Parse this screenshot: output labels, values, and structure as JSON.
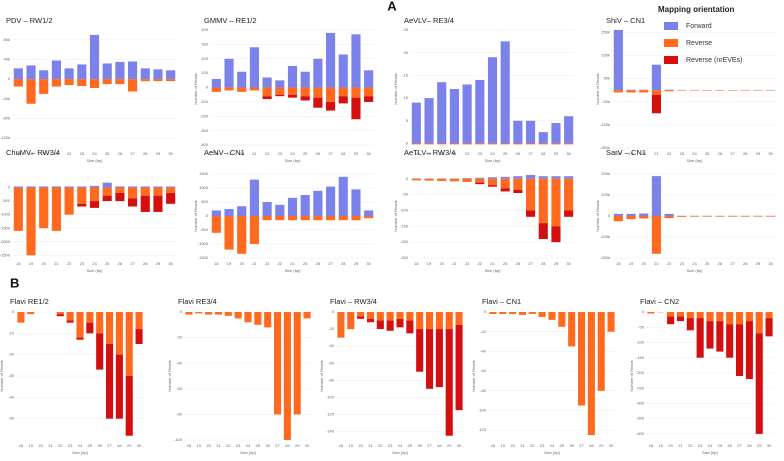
{
  "panel_labels": [
    "A",
    "B"
  ],
  "legend_title": "Mapping orientation",
  "chart_data": [
    {
      "type": "bar",
      "title": "PDV – RW1/2",
      "xlabel": "Size (bp)",
      "ylabel": "Number of Reads",
      "grid": true,
      "categories": [
        "18",
        "19",
        "20",
        "21",
        "22",
        "23",
        "24",
        "25",
        "26",
        "27",
        "28",
        "29",
        "30"
      ],
      "series": [
        {
          "name": "Forward",
          "color": "#7b83eb",
          "values": [
            22000,
            28000,
            18000,
            38000,
            22000,
            30000,
            90000,
            32000,
            35000,
            36000,
            22000,
            20000,
            18000
          ]
        },
        {
          "name": "Reverse",
          "color": "#ff6a1f",
          "values": [
            -15000,
            -50000,
            -30000,
            -15000,
            -12000,
            -14000,
            -18000,
            -10000,
            -10000,
            -25000,
            -4000,
            -4000,
            -4000
          ]
        },
        {
          "name": "Reverse (nrEVEs)",
          "color": "#d3100f",
          "values": [
            0,
            0,
            0,
            0,
            0,
            0,
            0,
            0,
            0,
            0,
            0,
            0,
            0
          ]
        }
      ],
      "ylim": [
        -140000,
        100000
      ],
      "yticks": [
        {
          "value": 80000,
          "label": "80k"
        },
        {
          "value": 40000,
          "label": "40k"
        },
        0,
        {
          "value": -40000,
          "label": "-40k"
        },
        {
          "value": -80000,
          "label": "-80k"
        },
        {
          "value": -120000,
          "label": "-120k"
        }
      ]
    },
    {
      "type": "bar",
      "title": "GMMV – RE1/2",
      "xlabel": "Size (bp)",
      "ylabel": "Number of Reads",
      "grid": true,
      "categories": [
        "18",
        "19",
        "20",
        "21",
        "22",
        "23",
        "24",
        "25",
        "26",
        "27",
        "28",
        "29",
        "30"
      ],
      "series": [
        {
          "name": "Forward",
          "color": "#7b83eb",
          "values": [
            60,
            200,
            110,
            280,
            70,
            50,
            150,
            110,
            200,
            380,
            230,
            370,
            120
          ]
        },
        {
          "name": "Reverse",
          "color": "#ff6a1f",
          "values": [
            -30,
            -20,
            -30,
            -20,
            -60,
            -50,
            -50,
            -60,
            -70,
            -100,
            -60,
            -70,
            -60
          ]
        },
        {
          "name": "Reverse (nrEVEs)",
          "color": "#d3100f",
          "values": [
            0,
            0,
            0,
            0,
            -20,
            -10,
            -20,
            -30,
            -70,
            -60,
            -50,
            -150,
            -40
          ]
        }
      ],
      "ylim": [
        -420,
        400
      ],
      "yticks": [
        400,
        300,
        200,
        100,
        0,
        -100,
        -200,
        -300,
        -400
      ]
    },
    {
      "type": "bar",
      "title": "AeVLV– RE3/4",
      "xlabel": "Size (bp)",
      "ylabel": "Number of Reads",
      "grid": true,
      "categories": [
        "18",
        "19",
        "20",
        "21",
        "22",
        "23",
        "24",
        "25",
        "26",
        "27",
        "28",
        "29",
        "30"
      ],
      "series": [
        {
          "name": "Forward",
          "color": "#7b83eb",
          "values": [
            9,
            10,
            13.5,
            12,
            13,
            14,
            19,
            22.5,
            5,
            5,
            2.5,
            4.5,
            6
          ]
        },
        {
          "name": "Reverse",
          "color": "#ff6a1f",
          "values": [
            -0.2,
            -0.2,
            -0.2,
            -0.2,
            -0.2,
            -0.2,
            -0.2,
            -0.2,
            -0.2,
            -0.2,
            -0.2,
            -0.2,
            -0.2
          ]
        },
        {
          "name": "Reverse (nrEVEs)",
          "color": "#d3100f",
          "values": [
            0,
            0,
            0,
            0,
            0,
            0,
            0,
            0,
            0,
            0,
            0,
            0,
            0
          ]
        }
      ],
      "ylim": [
        -1,
        25
      ],
      "yticks": [
        25,
        20,
        15,
        10,
        5,
        0
      ]
    },
    {
      "type": "bar",
      "title": "ShiV – CN1",
      "xlabel": "Size (bp)",
      "ylabel": "Number of Reads",
      "grid": true,
      "categories": [
        "18",
        "19",
        "20",
        "21",
        "22",
        "23",
        "24",
        "25",
        "26",
        "27",
        "28",
        "29",
        "30"
      ],
      "series": [
        {
          "name": "Forward",
          "color": "#7b83eb",
          "values": [
            260000,
            2000,
            2000,
            110000,
            2000,
            1000,
            1000,
            1000,
            1000,
            1000,
            1000,
            1000,
            1000
          ]
        },
        {
          "name": "Reverse",
          "color": "#ff6a1f",
          "values": [
            -10000,
            -10000,
            -10000,
            -20000,
            -5000,
            -2000,
            -2000,
            -2000,
            -2000,
            -2000,
            -2000,
            -2000,
            -2000
          ]
        },
        {
          "name": "Reverse (nrEVEs)",
          "color": "#d3100f",
          "values": [
            0,
            0,
            0,
            -80000,
            0,
            0,
            0,
            0,
            0,
            0,
            0,
            0,
            0
          ]
        }
      ],
      "ylim": [
        -250000,
        260000
      ],
      "yticks": [
        {
          "value": 250000,
          "label": "250k"
        },
        {
          "value": 150000,
          "label": "150k"
        },
        {
          "value": 50000,
          "label": "50k"
        },
        {
          "value": -50000,
          "label": "-50k"
        },
        {
          "value": -150000,
          "label": "-150k"
        },
        {
          "value": -250000,
          "label": "-250k"
        }
      ]
    },
    {
      "type": "bar",
      "title": "ChuMV– RW3/4",
      "xlabel": "Size (bp)",
      "ylabel": "Number of Reads",
      "grid": true,
      "categories": [
        "18",
        "19",
        "20",
        "21",
        "22",
        "23",
        "24",
        "25",
        "26",
        "27",
        "28",
        "29",
        "30"
      ],
      "series": [
        {
          "name": "Forward",
          "color": "#7b83eb",
          "values": [
            40,
            40,
            40,
            40,
            40,
            40,
            60,
            180,
            40,
            40,
            40,
            40,
            40
          ]
        },
        {
          "name": "Reverse",
          "color": "#ff6a1f",
          "values": [
            -1600,
            -2500,
            -1500,
            -1600,
            -1000,
            -600,
            -500,
            -300,
            -200,
            -400,
            -300,
            -300,
            -200
          ]
        },
        {
          "name": "Reverse (nrEVEs)",
          "color": "#d3100f",
          "values": [
            0,
            0,
            0,
            0,
            0,
            -100,
            -250,
            -200,
            -300,
            -300,
            -600,
            -600,
            -400
          ]
        }
      ],
      "ylim": [
        -2600,
        500
      ],
      "yticks": [
        0,
        -500,
        -1000,
        -1500,
        -2000,
        -2500
      ]
    },
    {
      "type": "bar",
      "title": "AeNV– CN1",
      "xlabel": "Size (bp)",
      "ylabel": "Number of Reads",
      "grid": true,
      "categories": [
        "18",
        "19",
        "20",
        "21",
        "22",
        "23",
        "24",
        "25",
        "26",
        "27",
        "28",
        "29",
        "30"
      ],
      "series": [
        {
          "name": "Forward",
          "color": "#7b83eb",
          "values": [
            200,
            250,
            350,
            1300,
            500,
            400,
            650,
            750,
            900,
            1050,
            1400,
            950,
            200
          ]
        },
        {
          "name": "Reverse",
          "color": "#ff6a1f",
          "values": [
            -600,
            -1200,
            -1350,
            -1000,
            -150,
            -150,
            -150,
            -150,
            -150,
            -150,
            -150,
            -150,
            -80
          ]
        },
        {
          "name": "Reverse (nrEVEs)",
          "color": "#d3100f",
          "values": [
            0,
            0,
            0,
            0,
            0,
            0,
            0,
            0,
            0,
            0,
            0,
            0,
            0
          ]
        }
      ],
      "ylim": [
        -1500,
        1500
      ],
      "yticks": [
        1500,
        1000,
        500,
        0,
        -500,
        -1000,
        -1500
      ]
    },
    {
      "type": "bar",
      "title": "AeTLV– RW3/4",
      "xlabel": "Size (bp)",
      "ylabel": "Number of Reads",
      "grid": true,
      "categories": [
        "18",
        "19",
        "20",
        "21",
        "22",
        "23",
        "24",
        "25",
        "26",
        "27",
        "28",
        "29",
        "30"
      ],
      "series": [
        {
          "name": "Forward",
          "color": "#7b83eb",
          "values": [
            1,
            1,
            1,
            1,
            2,
            3,
            5,
            6,
            8,
            12,
            8,
            8,
            8
          ]
        },
        {
          "name": "Reverse",
          "color": "#ff6a1f",
          "values": [
            -5,
            -6,
            -7,
            -8,
            -10,
            -12,
            -20,
            -30,
            -35,
            -100,
            -140,
            -150,
            -100
          ]
        },
        {
          "name": "Reverse (nrEVEs)",
          "color": "#d3100f",
          "values": [
            0,
            0,
            0,
            0,
            0,
            -5,
            -5,
            -10,
            -10,
            -20,
            -50,
            -50,
            -20
          ]
        }
      ],
      "ylim": [
        -250,
        15
      ],
      "yticks": [
        0,
        -50,
        -100,
        -150,
        -200,
        -250
      ]
    },
    {
      "type": "bar",
      "title": "SarV – CN1",
      "xlabel": "Size (bp)",
      "ylabel": "Number of Reads",
      "grid": true,
      "categories": [
        "18",
        "19",
        "20",
        "21",
        "22",
        "23",
        "24",
        "25",
        "26",
        "27",
        "28",
        "29",
        "30"
      ],
      "series": [
        {
          "name": "Forward",
          "color": "#7b83eb",
          "values": [
            10000,
            10000,
            12000,
            190000,
            10000,
            1000,
            1000,
            1000,
            1000,
            1000,
            1000,
            1000,
            1000
          ]
        },
        {
          "name": "Reverse",
          "color": "#ff6a1f",
          "values": [
            -25000,
            -15000,
            -12000,
            -180000,
            -10000,
            -4000,
            -3000,
            -3000,
            -3000,
            -3000,
            -3000,
            -3000,
            -3000
          ]
        },
        {
          "name": "Reverse (nrEVEs)",
          "color": "#d3100f",
          "values": [
            0,
            0,
            0,
            0,
            0,
            0,
            0,
            0,
            0,
            0,
            0,
            0,
            0
          ]
        }
      ],
      "ylim": [
        -200000,
        200000
      ],
      "yticks": [
        {
          "value": 200000,
          "label": "200k"
        },
        {
          "value": 100000,
          "label": "100k"
        },
        0,
        {
          "value": -100000,
          "label": "-100k"
        },
        {
          "value": -200000,
          "label": "-200k"
        }
      ]
    },
    {
      "type": "bar",
      "title": "Flavi RE1/2",
      "xlabel": "Size (bp)",
      "ylabel": "Number of Reads",
      "grid": true,
      "categories": [
        "18",
        "19",
        "20",
        "21",
        "22",
        "23",
        "24",
        "25",
        "26",
        "27",
        "28",
        "29",
        "30"
      ],
      "series": [
        {
          "name": "Reverse",
          "color": "#ff6a1f",
          "values": [
            -5,
            -1,
            0,
            0,
            -1,
            -4,
            -12,
            -5,
            -10,
            -15,
            -20,
            -30,
            -8
          ]
        },
        {
          "name": "Reverse (nrEVEs)",
          "color": "#d3100f",
          "values": [
            0,
            0,
            0,
            0,
            -1,
            -1,
            -1,
            -5,
            -17,
            -35,
            -30,
            -28,
            -7
          ]
        }
      ],
      "ylim": [
        -60,
        0
      ],
      "yticks": [
        0,
        -10,
        -20,
        -30,
        -40,
        -50
      ]
    },
    {
      "type": "bar",
      "title": "Flavi RE3/4",
      "xlabel": "Size (bp)",
      "ylabel": "Number of Reads",
      "grid": true,
      "categories": [
        "18",
        "19",
        "20",
        "21",
        "22",
        "23",
        "24",
        "25",
        "26",
        "27",
        "28",
        "29",
        "30"
      ],
      "series": [
        {
          "name": "Reverse",
          "color": "#ff6a1f",
          "values": [
            -2,
            -1,
            -2,
            -2,
            -3,
            -5,
            -8,
            -10,
            -12,
            -80,
            -100,
            -80,
            -5
          ]
        },
        {
          "name": "Reverse (nrEVEs)",
          "color": "#d3100f",
          "values": [
            0,
            0,
            0,
            0,
            0,
            0,
            0,
            0,
            0,
            0,
            0,
            0,
            0
          ]
        }
      ],
      "ylim": [
        -100,
        0
      ],
      "yticks": [
        0,
        -20,
        -40,
        -60,
        -80,
        -100
      ]
    },
    {
      "type": "bar",
      "title": "Flavi – RW3/4",
      "xlabel": "Size (bp)",
      "ylabel": "Number of Reads",
      "grid": true,
      "categories": [
        "18",
        "19",
        "20",
        "21",
        "22",
        "23",
        "24",
        "25",
        "26",
        "27",
        "28",
        "29",
        "30"
      ],
      "series": [
        {
          "name": "Reverse",
          "color": "#ff6a1f",
          "values": [
            -30,
            -20,
            -5,
            -8,
            -10,
            -10,
            -8,
            -10,
            -20,
            -20,
            -20,
            -20,
            -15
          ]
        },
        {
          "name": "Reverse (nrEVEs)",
          "color": "#d3100f",
          "values": [
            0,
            0,
            -3,
            -4,
            -10,
            -12,
            -10,
            -15,
            -50,
            -70,
            -68,
            -125,
            -100
          ]
        }
      ],
      "ylim": [
        -150,
        0
      ],
      "yticks": [
        0,
        -20,
        -40,
        -60,
        -80,
        -100,
        -120,
        -140
      ]
    },
    {
      "type": "bar",
      "title": "Flavi – CN1",
      "xlabel": "Size (bp)",
      "ylabel": "Number of Reads",
      "grid": true,
      "categories": [
        "18",
        "19",
        "20",
        "21",
        "22",
        "23",
        "24",
        "25",
        "26",
        "27",
        "28",
        "29",
        "30"
      ],
      "series": [
        {
          "name": "Reverse",
          "color": "#ff6a1f",
          "values": [
            -2,
            -2,
            -2,
            -3,
            -2,
            -5,
            -8,
            -15,
            -35,
            -95,
            -125,
            -80,
            -20
          ]
        },
        {
          "name": "Reverse (nrEVEs)",
          "color": "#d3100f",
          "values": [
            0,
            0,
            0,
            0,
            0,
            0,
            0,
            0,
            0,
            0,
            0,
            0,
            0
          ]
        }
      ],
      "ylim": [
        -130,
        0
      ],
      "yticks": [
        0,
        -20,
        -40,
        -60,
        -80,
        -100,
        -120
      ]
    },
    {
      "type": "bar",
      "title": "Flavi – CN2",
      "xlabel": "Size (bp)",
      "ylabel": "Number of Reads",
      "grid": true,
      "categories": [
        "18",
        "19",
        "20",
        "21",
        "22",
        "23",
        "24",
        "25",
        "26",
        "27",
        "28",
        "29",
        "30"
      ],
      "series": [
        {
          "name": "Reverse",
          "color": "#ff6a1f",
          "values": [
            -5,
            -1,
            -15,
            -15,
            -20,
            -20,
            -30,
            -30,
            -40,
            -40,
            -30,
            -70,
            -20
          ]
        },
        {
          "name": "Reverse (nrEVEs)",
          "color": "#d3100f",
          "values": [
            0,
            0,
            -25,
            -15,
            -40,
            -130,
            -90,
            -100,
            -110,
            -170,
            -190,
            -330,
            -60
          ]
        }
      ],
      "ylim": [
        -420,
        0
      ],
      "yticks": [
        0,
        -50,
        -100,
        -150,
        -200,
        -250,
        -300,
        -350,
        -400
      ]
    }
  ]
}
